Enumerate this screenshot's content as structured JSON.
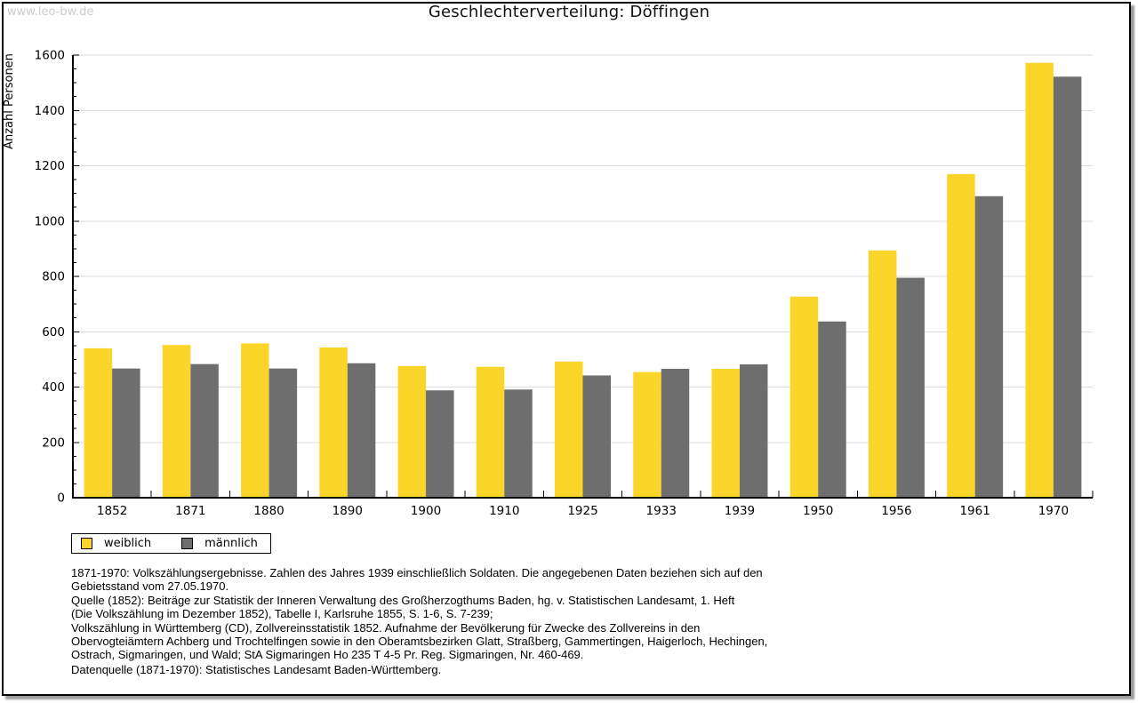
{
  "page": {
    "watermark": "www.leo-bw.de",
    "title": "Geschlechterverteilung: Döffingen"
  },
  "chart_data": {
    "type": "bar",
    "title": "Geschlechterverteilung: Döffingen",
    "xlabel": "",
    "ylabel": "Anzahl Personen",
    "ylim": [
      0,
      1600
    ],
    "ytick_step": 200,
    "yminor_step": 50,
    "grid": true,
    "legend_position": "bottom-left",
    "categories": [
      "1852",
      "1871",
      "1880",
      "1890",
      "1900",
      "1910",
      "1925",
      "1933",
      "1939",
      "1950",
      "1956",
      "1961",
      "1970"
    ],
    "series": [
      {
        "name": "weiblich",
        "color": "#FCD52B",
        "values": [
          540,
          552,
          558,
          543,
          476,
          473,
          492,
          454,
          466,
          727,
          894,
          1170,
          1572
        ]
      },
      {
        "name": "männlich",
        "color": "#6E6E6E",
        "values": [
          467,
          483,
          467,
          486,
          388,
          391,
          442,
          466,
          482,
          637,
          795,
          1090,
          1522
        ]
      }
    ],
    "colors": {
      "grid": "#dcdcdc",
      "axis": "#000000",
      "text": "#000000"
    }
  },
  "footnotes": {
    "lines": [
      "1871-1970: Volkszählungsergebnisse. Zahlen des Jahres 1939 einschließlich Soldaten. Die angegebenen Daten beziehen sich auf den",
      "Gebietsstand vom 27.05.1970.",
      "Quelle (1852): Beiträge zur Statistik der Inneren Verwaltung des Großherzogthums Baden, hg. v. Statistischen Landesamt, 1. Heft",
      "(Die Volkszählung im Dezember 1852), Tabelle I, Karlsruhe 1855, S. 1-6, S. 7-239;",
      "Volkszählung in Württemberg (CD), Zollvereinsstatistik 1852. Aufnahme der Bevölkerung für Zwecke des Zollvereins in den",
      "Obervogteiämtern Achberg und Trochtelfingen sowie in den Oberamtsbezirken Glatt, Straßberg, Gammertingen, Haigerloch, Hechingen,",
      "Ostrach, Sigmaringen, und Wald; StA Sigmaringen Ho 235 T 4-5 Pr. Reg. Sigmaringen, Nr. 460-469."
    ],
    "source_line": "Datenquelle (1871-1970): Statistisches Landesamt Baden-Württemberg."
  }
}
